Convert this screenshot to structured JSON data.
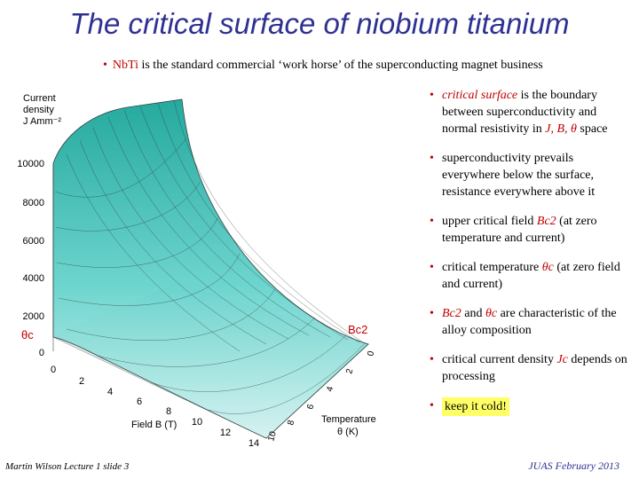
{
  "title": "The critical surface of niobium titanium",
  "intro": {
    "bullet": "•",
    "highlight": "NbTi",
    "text": " is the standard commercial ‘work horse’ of the superconducting magnet business"
  },
  "plot": {
    "axis_labels": {
      "z_line1": "Current",
      "z_line2": "density",
      "z_line3": "J Amm⁻²",
      "x": "Field B (T)",
      "temp_line1": "Temperature",
      "temp_line2": "θ (K)"
    },
    "z_ticks": [
      "10000",
      "8000",
      "6000",
      "4000",
      "2000",
      "0"
    ],
    "b_ticks": [
      "0",
      "2",
      "4",
      "6",
      "8",
      "10",
      "12",
      "14"
    ],
    "t_ticks": [
      "0",
      "2",
      "4",
      "6",
      "8",
      "10"
    ],
    "bc2_label": "Bc2",
    "thetac_label": "θc",
    "colors": {
      "surface_top": "#1aa59a",
      "surface_bottom": "#bff0ef",
      "mesh": "#2a3a3a"
    }
  },
  "bullets": {
    "b1": {
      "pre": "critical surface",
      "post": " is the boundary between superconductivity and normal resistivity in ",
      "vars": "J, B, θ",
      "end": " space"
    },
    "b2": {
      "text": "superconductivity prevails everywhere below the surface, resistance everywhere above it"
    },
    "b3": {
      "pre": "upper critical field ",
      "var": "Bc2",
      "post": " (at zero temperature and current)"
    },
    "b4": {
      "pre": "critical temperature ",
      "var": "θc",
      "post": " (at zero field and current)"
    },
    "b5": {
      "var1": "Bc2",
      "mid": " and ",
      "var2": "θc",
      "post": " are characteristic of the alloy composition"
    },
    "b6": {
      "pre": "critical current density ",
      "var": "Jc",
      "post": " depends on processing"
    },
    "b7": {
      "text": "keep it cold!"
    }
  },
  "footer": {
    "left": "Martin Wilson Lecture 1 slide 3",
    "right": "JUAS February 2013"
  }
}
